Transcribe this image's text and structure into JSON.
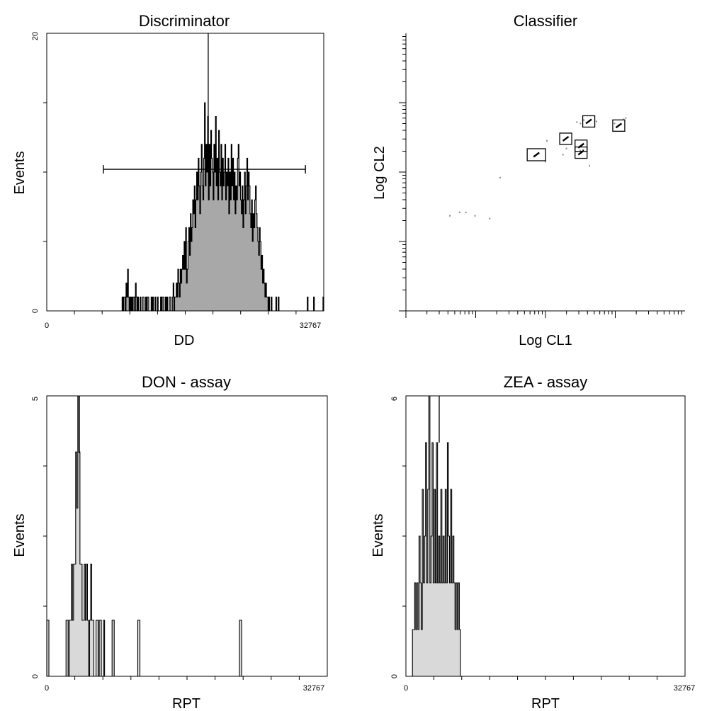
{
  "chart_data": [
    {
      "type": "histogram",
      "title": "Discriminator",
      "xlabel": "DD",
      "ylabel": "Events",
      "x_tick_labels": [
        "0",
        "32767"
      ],
      "y_tick_labels": [
        "0",
        "20"
      ],
      "xlim": [
        0,
        32767
      ],
      "ylim": [
        0,
        20
      ],
      "fill_color": "#a8a8a8",
      "counts": [
        0,
        0,
        0,
        0,
        0,
        0,
        0,
        0,
        0,
        0,
        0,
        0,
        0,
        0,
        0,
        0,
        0,
        0,
        0,
        0,
        0,
        0,
        0,
        0,
        0,
        0,
        0,
        0,
        0,
        0,
        0,
        0,
        0,
        0,
        0,
        0,
        0,
        0,
        0,
        0,
        0,
        0,
        0,
        0,
        0,
        0,
        0,
        0,
        0,
        0,
        0,
        0,
        0,
        0,
        0,
        0,
        0,
        0,
        0,
        0,
        0,
        0,
        0,
        0,
        0,
        0,
        0,
        0,
        0,
        0,
        0,
        0,
        0,
        0,
        0,
        0,
        0,
        0,
        0,
        0,
        0,
        0,
        0,
        0,
        0,
        0,
        0,
        0,
        0,
        0,
        0,
        0,
        0,
        0,
        0,
        0,
        1,
        0,
        1,
        1,
        0,
        2,
        1,
        3,
        1,
        0,
        1,
        0,
        1,
        0,
        1,
        1,
        0,
        2,
        1,
        0,
        1,
        0,
        0,
        1,
        0,
        0,
        1,
        1,
        0,
        0,
        1,
        0,
        1,
        1,
        0,
        0,
        0,
        1,
        0,
        1,
        0,
        0,
        1,
        0,
        0,
        1,
        0,
        0,
        0,
        1,
        0,
        1,
        1,
        0,
        0,
        1,
        0,
        1,
        0,
        0,
        1,
        1,
        0,
        0,
        1,
        2,
        0,
        1,
        1,
        2,
        1,
        3,
        2,
        1,
        3,
        2,
        3,
        4,
        3,
        5,
        3,
        6,
        2,
        3,
        5,
        6,
        4,
        7,
        5,
        6,
        8,
        7,
        9,
        6,
        8,
        10,
        8,
        11,
        9,
        7,
        10,
        12,
        9,
        8,
        11,
        15,
        9,
        12,
        10,
        14,
        8,
        12,
        9,
        13,
        11,
        10,
        8,
        12,
        10,
        14,
        9,
        11,
        8,
        13,
        10,
        9,
        12,
        8,
        11,
        9,
        10,
        12,
        8,
        10,
        9,
        11,
        7,
        10,
        8,
        12,
        9,
        11,
        8,
        10,
        7,
        9,
        8,
        11,
        12,
        9,
        10,
        8,
        7,
        9,
        6,
        8,
        10,
        7,
        9,
        11,
        8,
        10,
        9,
        7,
        6,
        8,
        5,
        7,
        6,
        8,
        9,
        7,
        6,
        5,
        4,
        6,
        5,
        3,
        4,
        2,
        3,
        2,
        1,
        2,
        1,
        1,
        0,
        1,
        0,
        0,
        1,
        0,
        0,
        0,
        0,
        0,
        1,
        0,
        0,
        1,
        0,
        0,
        0,
        0,
        0,
        0,
        0,
        0,
        0,
        0,
        0,
        0,
        0,
        0,
        0,
        0,
        0,
        0,
        0,
        0,
        0,
        0,
        0,
        0,
        0,
        0,
        0,
        0,
        0,
        0,
        0,
        0,
        0,
        0,
        0,
        0,
        1,
        0,
        0,
        0,
        0,
        0,
        0,
        0,
        1,
        0,
        0,
        0,
        0,
        0,
        0,
        0,
        0,
        0,
        0,
        0,
        1
      ],
      "annotations": [
        {
          "type": "range-marker",
          "x_start": 6700,
          "x_end": 30600,
          "y": 10.2
        },
        {
          "type": "peak-line",
          "x": 19100,
          "y": 20
        }
      ]
    },
    {
      "type": "scatter",
      "title": "Classifier",
      "xlabel": "Log CL1",
      "ylabel": "Log CL2",
      "xscale": "log",
      "yscale": "log",
      "decades": 4,
      "clusters": [
        {
          "x": 2.62,
          "y": 2.73
        },
        {
          "x": 3.05,
          "y": 2.67
        },
        {
          "x": 2.29,
          "y": 2.48
        },
        {
          "x": 2.51,
          "y": 2.38
        },
        {
          "x": 2.51,
          "y": 2.28
        },
        {
          "x": 1.87,
          "y": 2.25
        }
      ],
      "scattered_points": [
        {
          "x": 2.5,
          "y": 2.7
        },
        {
          "x": 2.55,
          "y": 2.75
        },
        {
          "x": 2.73,
          "y": 2.73
        },
        {
          "x": 2.45,
          "y": 2.72
        },
        {
          "x": 2.99,
          "y": 2.7
        },
        {
          "x": 3.15,
          "y": 2.78
        },
        {
          "x": 3.12,
          "y": 2.76
        },
        {
          "x": 2.02,
          "y": 2.45
        },
        {
          "x": 2.3,
          "y": 2.34
        },
        {
          "x": 2.54,
          "y": 2.32
        },
        {
          "x": 2.5,
          "y": 2.31
        },
        {
          "x": 2.25,
          "y": 2.25
        },
        {
          "x": 2.63,
          "y": 2.09
        },
        {
          "x": 2.0,
          "y": 2.15
        },
        {
          "x": 1.35,
          "y": 1.92
        },
        {
          "x": 0.86,
          "y": 1.42
        },
        {
          "x": 0.77,
          "y": 1.42
        },
        {
          "x": 0.63,
          "y": 1.37
        },
        {
          "x": 0.99,
          "y": 1.37
        },
        {
          "x": 1.2,
          "y": 1.33
        }
      ]
    },
    {
      "type": "histogram",
      "title": "DON - assay",
      "xlabel": "RPT",
      "ylabel": "Events",
      "x_tick_labels": [
        "0",
        "32767"
      ],
      "y_tick_labels": [
        "0",
        "5"
      ],
      "xlim": [
        0,
        32767
      ],
      "ylim": [
        0,
        5
      ],
      "fill_color": "#d9d9d9",
      "counts": [
        1,
        1,
        0,
        0,
        0,
        0,
        0,
        0,
        0,
        0,
        0,
        0,
        0,
        0,
        0,
        0,
        0,
        0,
        1,
        1,
        0,
        1,
        1,
        2,
        1,
        2,
        2,
        4,
        3,
        5,
        4,
        2,
        2,
        1,
        1,
        2,
        1,
        2,
        1,
        0,
        1,
        2,
        1,
        1,
        0,
        0,
        1,
        1,
        0,
        1,
        1,
        0,
        0,
        1,
        0,
        0,
        0,
        0,
        0,
        0,
        0,
        1,
        1,
        0,
        0,
        0,
        0,
        0,
        0,
        0,
        0,
        0,
        0,
        0,
        0,
        0,
        0,
        0,
        0,
        0,
        0,
        0,
        0,
        0,
        0,
        1,
        1,
        0,
        0,
        0,
        0,
        0,
        0,
        0,
        0,
        0,
        0,
        0,
        0,
        0,
        0,
        0,
        0,
        0,
        0,
        0,
        0,
        0,
        0,
        0,
        0,
        0,
        0,
        0,
        0,
        0,
        0,
        0,
        0,
        0,
        0,
        0,
        0,
        0,
        0,
        0,
        0,
        0,
        0,
        0,
        0,
        0,
        0,
        0,
        0,
        0,
        0,
        0,
        0,
        0,
        0,
        0,
        0,
        0,
        0,
        0,
        0,
        0,
        0,
        0,
        0,
        0,
        0,
        0,
        0,
        0,
        0,
        0,
        0,
        0,
        0,
        0,
        0,
        0,
        0,
        0,
        0,
        0,
        0,
        0,
        0,
        0,
        0,
        0,
        0,
        0,
        0,
        0,
        0,
        0,
        1,
        1,
        0,
        0,
        0,
        0,
        0,
        0,
        0,
        0,
        0,
        0,
        0,
        0,
        0,
        0,
        0,
        0,
        0,
        0,
        0,
        0,
        0,
        0,
        0,
        0,
        0,
        0,
        0,
        0,
        0,
        0,
        0,
        0,
        0,
        0,
        0,
        0,
        0,
        0,
        0,
        0,
        0,
        0,
        0,
        0,
        0,
        0,
        0,
        0,
        0,
        0,
        0,
        0,
        0,
        0,
        0,
        0,
        0,
        0,
        0,
        0,
        0,
        0,
        0,
        0,
        0,
        0,
        0,
        0,
        0,
        0,
        0,
        0,
        0,
        0,
        0,
        0,
        0,
        0,
        0,
        0
      ]
    },
    {
      "type": "histogram",
      "title": "ZEA - assay",
      "xlabel": "RPT",
      "ylabel": "Events",
      "x_tick_labels": [
        "0",
        "32767"
      ],
      "y_tick_labels": [
        "0",
        "6"
      ],
      "xlim": [
        0,
        32767
      ],
      "ylim": [
        0,
        6
      ],
      "fill_color": "#d9d9d9",
      "counts": [
        0,
        0,
        0,
        0,
        0,
        0,
        0,
        0,
        0,
        0,
        0,
        0,
        0,
        0,
        0,
        0,
        0,
        0,
        0,
        0,
        0,
        0,
        0,
        0,
        0,
        0,
        0,
        0,
        0,
        0,
        0,
        0,
        0,
        0,
        0,
        0,
        0,
        0,
        0,
        0,
        0,
        0,
        0,
        0,
        0,
        0,
        0,
        0,
        0,
        0,
        0,
        0,
        0,
        0,
        0,
        0,
        0,
        0,
        0,
        0,
        0,
        0,
        0,
        0,
        0,
        0,
        0,
        0,
        0,
        0,
        0,
        0,
        0,
        0,
        0,
        0,
        0,
        0,
        0,
        0,
        0,
        0,
        0,
        0,
        0,
        0,
        0,
        0,
        0,
        0,
        0,
        0,
        0,
        0,
        0,
        0,
        0,
        0,
        0,
        0,
        0,
        0,
        0,
        0,
        0,
        0,
        0,
        0,
        0,
        0,
        0,
        0,
        0,
        0,
        0,
        0,
        0,
        0,
        0,
        0,
        0,
        0,
        0,
        0,
        0,
        0,
        0,
        0,
        0,
        0,
        0,
        0,
        0,
        0,
        0,
        0,
        0,
        0,
        0,
        0,
        0,
        0,
        0,
        0,
        0,
        0,
        0,
        0,
        0,
        0,
        0,
        0,
        0,
        0,
        0,
        0,
        0,
        0,
        0,
        0,
        0,
        0,
        0,
        0,
        0,
        0,
        0,
        0,
        0,
        0,
        0,
        0,
        0,
        0,
        0,
        0,
        0,
        0,
        0,
        0,
        0,
        0,
        0,
        0,
        0,
        0,
        0,
        0,
        0,
        0,
        0,
        0,
        0,
        0,
        0,
        0,
        0,
        0,
        0,
        0,
        0,
        0,
        0,
        0,
        0,
        0,
        0,
        0,
        0,
        0,
        0,
        0,
        0,
        0,
        0,
        0,
        0,
        0,
        0,
        0,
        0,
        0,
        0,
        0,
        0,
        0,
        0,
        0,
        0,
        0,
        0,
        0,
        0,
        0,
        0,
        0,
        0,
        0,
        0,
        0,
        0,
        0,
        0,
        0,
        0,
        0,
        0,
        0,
        0,
        0,
        0,
        0,
        0,
        0,
        0,
        0
      ],
      "counts_override": [
        [
          6,
          1
        ],
        [
          7,
          1
        ],
        [
          8,
          2
        ],
        [
          9,
          1
        ],
        [
          10,
          2
        ],
        [
          11,
          1
        ],
        [
          12,
          3
        ],
        [
          13,
          2
        ],
        [
          14,
          1
        ],
        [
          15,
          4
        ],
        [
          16,
          2
        ],
        [
          17,
          3
        ],
        [
          18,
          5
        ],
        [
          19,
          2
        ],
        [
          20,
          4
        ],
        [
          21,
          6
        ],
        [
          22,
          2
        ],
        [
          23,
          3
        ],
        [
          24,
          5
        ],
        [
          25,
          2
        ],
        [
          26,
          4
        ],
        [
          27,
          2
        ],
        [
          28,
          5
        ],
        [
          29,
          2
        ],
        [
          30,
          3
        ],
        [
          31,
          2
        ],
        [
          32,
          4
        ],
        [
          33,
          2
        ],
        [
          34,
          3
        ],
        [
          35,
          2
        ],
        [
          36,
          4
        ],
        [
          37,
          2
        ],
        [
          38,
          5
        ],
        [
          39,
          3
        ],
        [
          40,
          2
        ],
        [
          41,
          4
        ],
        [
          42,
          2
        ],
        [
          43,
          3
        ],
        [
          44,
          2
        ],
        [
          45,
          1
        ],
        [
          46,
          2
        ],
        [
          47,
          1
        ],
        [
          48,
          2
        ],
        [
          49,
          1
        ]
      ]
    }
  ]
}
